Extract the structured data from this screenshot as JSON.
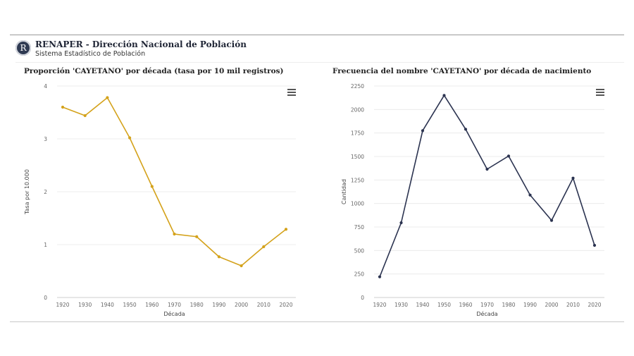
{
  "header": {
    "logo_letter": "R",
    "title": "RENAPER - Dirección Nacional de Población",
    "subtitle": "Sistema Estadístico de Población"
  },
  "charts": {
    "left": {
      "title": "Proporción 'CAYETANO' por década (tasa por 10 mil registros)",
      "menu_icon": "hamburger-menu-icon"
    },
    "right": {
      "title": "Frecuencia del nombre 'CAYETANO' por década de nacimiento",
      "menu_icon": "hamburger-menu-icon"
    }
  },
  "chart_data": [
    {
      "type": "line",
      "title": "Proporción 'CAYETANO' por década (tasa por 10 mil registros)",
      "xlabel": "Década",
      "ylabel": "Tasa por 10.000",
      "x": [
        "1920",
        "1930",
        "1940",
        "1950",
        "1960",
        "1970",
        "1980",
        "1990",
        "2000",
        "2010",
        "2020"
      ],
      "values": [
        3.6,
        3.44,
        3.78,
        3.02,
        2.1,
        1.2,
        1.15,
        0.77,
        0.6,
        0.96,
        1.29
      ],
      "yticks": [
        "0",
        "1",
        "2",
        "3",
        "4"
      ],
      "ylim": [
        0,
        4
      ],
      "color": "#d4a21b",
      "grid": true
    },
    {
      "type": "line",
      "title": "Frecuencia del nombre 'CAYETANO' por década de nacimiento",
      "xlabel": "Década",
      "ylabel": "Cantidad",
      "x": [
        "1920",
        "1930",
        "1940",
        "1950",
        "1960",
        "1970",
        "1980",
        "1990",
        "2000",
        "2010",
        "2020"
      ],
      "values": [
        220,
        795,
        1775,
        2150,
        1790,
        1365,
        1505,
        1090,
        820,
        1270,
        555
      ],
      "yticks": [
        "0",
        "250",
        "500",
        "750",
        "1000",
        "1250",
        "1500",
        "1750",
        "2000",
        "2250"
      ],
      "ylim": [
        0,
        2250
      ],
      "color": "#2b3350",
      "grid": true
    }
  ]
}
